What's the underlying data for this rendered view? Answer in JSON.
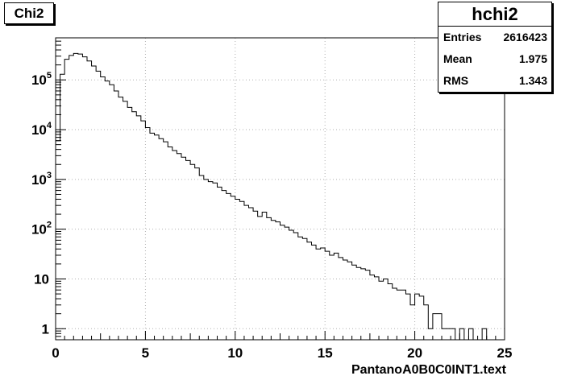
{
  "title": "Chi2",
  "stats": {
    "name": "hchi2",
    "rows": [
      {
        "label": "Entries",
        "value": "2616423"
      },
      {
        "label": "Mean",
        "value": "1.975"
      },
      {
        "label": "RMS",
        "value": "1.343"
      }
    ]
  },
  "chart_data": {
    "type": "histogram",
    "title": "Chi2",
    "xlabel": "PantanoA0B0C0INT1.text",
    "ylabel": "",
    "xlim": [
      0,
      25
    ],
    "ylim": [
      0.6,
      700000
    ],
    "log_y": true,
    "grid": true,
    "xticks": [
      "0",
      "5",
      "10",
      "15",
      "20",
      "25"
    ],
    "yticks": [
      {
        "value": 1,
        "base": "1",
        "exp": ""
      },
      {
        "value": 10,
        "base": "10",
        "exp": ""
      },
      {
        "value": 100,
        "base": "10",
        "exp": "2"
      },
      {
        "value": 1000,
        "base": "10",
        "exp": "3"
      },
      {
        "value": 10000,
        "base": "10",
        "exp": "4"
      },
      {
        "value": 100000,
        "base": "10",
        "exp": "5"
      }
    ],
    "bin_width": 0.25,
    "bin_start": 0,
    "counts": [
      6000,
      130000,
      260000,
      310000,
      340000,
      330000,
      290000,
      240000,
      190000,
      150000,
      115000,
      95000,
      80000,
      60000,
      45000,
      37000,
      28000,
      23000,
      19000,
      15000,
      11000,
      8500,
      7800,
      6600,
      5700,
      4500,
      3800,
      3300,
      2800,
      2400,
      2000,
      1700,
      1200,
      1000,
      900,
      850,
      700,
      600,
      520,
      460,
      400,
      360,
      300,
      270,
      230,
      180,
      220,
      170,
      150,
      140,
      120,
      110,
      95,
      85,
      70,
      65,
      55,
      48,
      40,
      42,
      36,
      30,
      33,
      27,
      24,
      22,
      19,
      17,
      16,
      15,
      12,
      11,
      9,
      10,
      8,
      6.5,
      6,
      6,
      5,
      3,
      5,
      4.5,
      3,
      1,
      2,
      2,
      1,
      1,
      1,
      0,
      1,
      0,
      1,
      0,
      0,
      1,
      0,
      0,
      0,
      0
    ]
  }
}
